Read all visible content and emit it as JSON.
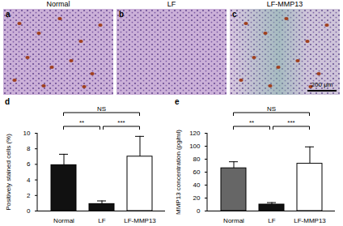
{
  "images": [
    {
      "panel_label": "a",
      "title": "Normal"
    },
    {
      "panel_label": "b",
      "title": "LF"
    },
    {
      "panel_label": "c",
      "title": "LF-MMP13"
    }
  ],
  "scale_bar": {
    "panel_label": "c",
    "label": "200 μm"
  },
  "chart_data": [
    {
      "type": "bar",
      "panel_label": "d",
      "y_label": "Positively stained cells (%)",
      "categories": [
        "Normal",
        "LF",
        "LF-MMP13"
      ],
      "values": [
        5.9,
        0.9,
        7.0
      ],
      "errors": [
        1.4,
        0.4,
        2.6
      ],
      "colors": [
        "#111111",
        "#111111",
        "#ffffff"
      ],
      "ylim": [
        0,
        10
      ],
      "yticks": [
        0,
        2,
        4,
        6,
        8,
        10
      ],
      "comparisons": [
        {
          "from": "Normal",
          "to": "LF",
          "label": "**"
        },
        {
          "from": "LF",
          "to": "LF-MMP13",
          "label": "***"
        },
        {
          "from": "Normal",
          "to": "LF-MMP13",
          "label": "NS"
        }
      ]
    },
    {
      "type": "bar",
      "panel_label": "e",
      "y_label": "MMP13 concentration (pg/ml)",
      "categories": [
        "Normal",
        "LF",
        "LF-MMP13"
      ],
      "values": [
        66,
        10,
        73
      ],
      "errors": [
        10,
        3,
        26
      ],
      "colors": [
        "#666666",
        "#111111",
        "#ffffff"
      ],
      "ylim": [
        0,
        120
      ],
      "yticks": [
        0,
        20,
        40,
        60,
        80,
        100,
        120
      ],
      "comparisons": [
        {
          "from": "Normal",
          "to": "LF",
          "label": "**"
        },
        {
          "from": "LF",
          "to": "LF-MMP13",
          "label": "***"
        },
        {
          "from": "Normal",
          "to": "LF-MMP13",
          "label": "NS"
        }
      ]
    }
  ]
}
